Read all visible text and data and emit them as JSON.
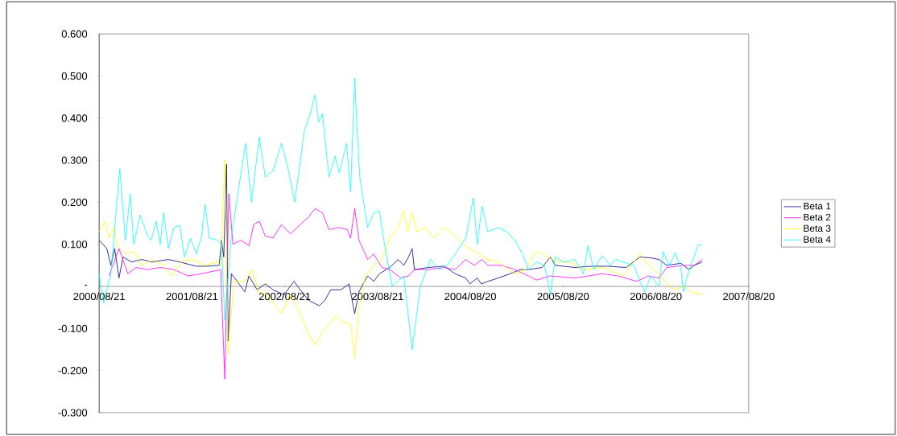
{
  "chart_data": {
    "type": "line",
    "legend": "right",
    "xlim": [
      "2000-08-21",
      "2007-08-20"
    ],
    "ylim": [
      -0.3,
      0.6
    ],
    "xticks": [
      {
        "value": "2000-08-21",
        "label": "2000/08/21"
      },
      {
        "value": "2001-08-21",
        "label": "2001/08/21"
      },
      {
        "value": "2002-08-21",
        "label": "2002/08/21"
      },
      {
        "value": "2003-08-21",
        "label": "2003/08/21"
      },
      {
        "value": "2004-08-20",
        "label": "2004/08/20"
      },
      {
        "value": "2005-08-20",
        "label": "2005/08/20"
      },
      {
        "value": "2006-08-20",
        "label": "2006/08/20"
      },
      {
        "value": "2007-08-20",
        "label": "2007/08/20"
      }
    ],
    "yticks": [
      {
        "value": -0.3,
        "label": "-0.300"
      },
      {
        "value": -0.2,
        "label": "-0.200"
      },
      {
        "value": -0.1,
        "label": "-0.100"
      },
      {
        "value": 0,
        "label": "-"
      },
      {
        "value": 0.1,
        "label": "0.100"
      },
      {
        "value": 0.2,
        "label": "0.200"
      },
      {
        "value": 0.3,
        "label": "0.300"
      },
      {
        "value": 0.4,
        "label": "0.400"
      },
      {
        "value": 0.5,
        "label": "0.500"
      },
      {
        "value": 0.6,
        "label": "0.600"
      }
    ],
    "series": [
      {
        "name": "Beta 1",
        "color": "#000080",
        "x": [
          "2000-08-21",
          "2000-09-20",
          "2000-10-06",
          "2000-10-21",
          "2000-11-07",
          "2000-11-23",
          "2000-12-25",
          "2001-02-05",
          "2001-03-17",
          "2001-05-20",
          "2001-07-04",
          "2001-09-07",
          "2001-10-18",
          "2001-12-06",
          "2001-12-15",
          "2001-12-24",
          "2002-01-04",
          "2002-01-10",
          "2002-01-23",
          "2002-02-15",
          "2002-03-17",
          "2002-04-02",
          "2002-05-04",
          "2002-06-05",
          "2002-07-06",
          "2002-08-18",
          "2002-09-26",
          "2002-10-21",
          "2002-11-23",
          "2002-12-15",
          "2003-01-04",
          "2003-01-26",
          "2003-02-18",
          "2003-03-30",
          "2003-05-01",
          "2003-05-23",
          "2003-06-09",
          "2003-06-25",
          "2003-07-13",
          "2003-08-06",
          "2003-08-28",
          "2003-10-08",
          "2003-11-10",
          "2003-12-02",
          "2003-12-21",
          "2004-01-04",
          "2004-01-13",
          "2004-03-07",
          "2004-05-10",
          "2004-06-21",
          "2004-08-02",
          "2004-08-18",
          "2004-09-16",
          "2004-10-02",
          "2004-10-28",
          "2004-12-08",
          "2005-01-23",
          "2005-03-04",
          "2005-04-05",
          "2005-05-29",
          "2005-07-01",
          "2005-07-20",
          "2005-10-05",
          "2005-12-09",
          "2006-02-11",
          "2006-04-25",
          "2006-06-18",
          "2006-07-30",
          "2006-09-01",
          "2006-10-02",
          "2006-11-26",
          "2006-12-28",
          "2007-01-17",
          "2007-02-18"
        ],
        "values": [
          0.11,
          0.09,
          0.05,
          0.09,
          0.02,
          0.07,
          0.058,
          0.064,
          0.058,
          0.064,
          0.058,
          0.048,
          0.048,
          0.05,
          0.11,
          0.07,
          0.29,
          -0.13,
          0.03,
          0.012,
          -0.013,
          0.025,
          -0.008,
          0.006,
          -0.008,
          -0.02,
          0.012,
          -0.008,
          -0.033,
          -0.04,
          -0.046,
          -0.033,
          -0.008,
          -0.008,
          0.006,
          -0.065,
          -0.013,
          0.006,
          0.025,
          0.012,
          0.03,
          0.045,
          0.064,
          0.05,
          0.07,
          0.09,
          0.04,
          0.045,
          0.048,
          0.03,
          0.02,
          0.006,
          0.02,
          0.006,
          0.012,
          0.02,
          0.03,
          0.04,
          0.04,
          0.045,
          0.07,
          0.05,
          0.045,
          0.048,
          0.048,
          0.045,
          0.07,
          0.068,
          0.064,
          0.05,
          0.055,
          0.04,
          0.05,
          0.058
        ]
      },
      {
        "name": "Beta 2",
        "color": "#ff00ff",
        "x": [
          "2000-09-29",
          "2000-11-07",
          "2000-12-12",
          "2001-01-13",
          "2001-02-27",
          "2001-04-18",
          "2001-06-11",
          "2001-08-05",
          "2001-09-26",
          "2001-12-12",
          "2001-12-28",
          "2002-01-13",
          "2002-01-29",
          "2002-03-01",
          "2002-04-02",
          "2002-04-21",
          "2002-05-13",
          "2002-06-05",
          "2002-07-06",
          "2002-08-08",
          "2002-09-13",
          "2002-10-21",
          "2002-11-23",
          "2002-12-18",
          "2003-01-16",
          "2003-02-11",
          "2003-03-20",
          "2003-04-24",
          "2003-05-07",
          "2003-05-23",
          "2003-06-09",
          "2003-07-13",
          "2003-08-06",
          "2003-09-07",
          "2003-10-08",
          "2003-11-20",
          "2003-12-21",
          "2004-01-13",
          "2004-03-07",
          "2004-05-10",
          "2004-06-21",
          "2004-08-02",
          "2004-09-04",
          "2004-10-05",
          "2004-10-28",
          "2004-12-21",
          "2005-02-11",
          "2005-04-05",
          "2005-05-07",
          "2005-07-01",
          "2005-10-05",
          "2005-11-26",
          "2006-01-20",
          "2006-03-23",
          "2006-06-06",
          "2006-07-20",
          "2006-09-01",
          "2006-10-02",
          "2006-12-06",
          "2007-01-17",
          "2007-02-18"
        ],
        "values": [
          0.025,
          0.09,
          0.03,
          0.045,
          0.04,
          0.045,
          0.04,
          0.025,
          0.03,
          0.04,
          -0.22,
          0.22,
          0.1,
          0.11,
          0.097,
          0.147,
          0.155,
          0.12,
          0.115,
          0.147,
          0.125,
          0.147,
          0.165,
          0.185,
          0.175,
          0.135,
          0.14,
          0.135,
          0.115,
          0.185,
          0.11,
          0.064,
          0.077,
          0.045,
          0.04,
          0.02,
          0.025,
          0.04,
          0.04,
          0.045,
          0.04,
          0.064,
          0.05,
          0.064,
          0.05,
          0.05,
          0.04,
          0.025,
          0.015,
          0.025,
          0.02,
          0.025,
          0.03,
          0.025,
          0.012,
          0.025,
          0.02,
          0.045,
          0.05,
          0.05,
          0.064
        ]
      },
      {
        "name": "Beta 3",
        "color": "#ffff00",
        "x": [
          "2000-08-21",
          "2000-09-13",
          "2000-09-29",
          "2000-10-15",
          "2000-11-01",
          "2000-12-02",
          "2001-01-04",
          "2001-02-05",
          "2001-03-17",
          "2001-05-01",
          "2001-06-02",
          "2001-07-13",
          "2001-08-25",
          "2001-10-09",
          "2001-11-29",
          "2001-12-12",
          "2001-12-28",
          "2002-01-10",
          "2002-02-02",
          "2002-03-17",
          "2002-04-12",
          "2002-05-13",
          "2002-06-15",
          "2002-08-08",
          "2002-09-10",
          "2002-10-21",
          "2002-11-23",
          "2002-12-18",
          "2003-01-16",
          "2003-02-11",
          "2003-03-07",
          "2003-04-08",
          "2003-05-07",
          "2003-05-23",
          "2003-06-09",
          "2003-07-04",
          "2003-08-06",
          "2003-09-07",
          "2003-10-08",
          "2003-11-10",
          "2003-12-02",
          "2003-12-18",
          "2004-01-04",
          "2004-01-23",
          "2004-02-25",
          "2004-03-27",
          "2004-05-10",
          "2004-06-21",
          "2004-07-23",
          "2004-09-04",
          "2004-10-28",
          "2004-12-08",
          "2005-02-11",
          "2005-03-26",
          "2005-04-28",
          "2005-05-17",
          "2005-06-18",
          "2005-08-02",
          "2005-09-13",
          "2005-11-07",
          "2006-01-20",
          "2006-04-15",
          "2006-06-18",
          "2006-07-30",
          "2006-09-10",
          "2006-10-09",
          "2006-11-04",
          "2006-12-06",
          "2007-01-07",
          "2007-02-18"
        ],
        "values": [
          0.13,
          0.155,
          0.115,
          0.14,
          0.097,
          0.077,
          0.083,
          0.05,
          0.064,
          0.05,
          0.025,
          0.06,
          0.064,
          0.05,
          0.058,
          0.05,
          0.3,
          -0.16,
          0.012,
          0.012,
          0.04,
          -0.013,
          -0.02,
          -0.065,
          -0.02,
          -0.065,
          -0.115,
          -0.14,
          -0.11,
          -0.09,
          -0.07,
          -0.085,
          -0.09,
          -0.17,
          -0.05,
          0.025,
          0.05,
          0.064,
          0.115,
          0.14,
          0.18,
          0.13,
          0.175,
          0.13,
          0.14,
          0.115,
          0.14,
          0.12,
          0.1,
          0.083,
          0.064,
          0.058,
          0.03,
          0.04,
          0.077,
          0.083,
          0.07,
          0.058,
          0.058,
          0.04,
          0.045,
          0.025,
          0.077,
          0.045,
          0.025,
          0.0,
          -0.008,
          0.0,
          -0.013,
          -0.02
        ]
      },
      {
        "name": "Beta 4",
        "color": "#00ffff",
        "x": [
          "2000-08-21",
          "2000-09-07",
          "2000-10-06",
          "2000-11-10",
          "2000-12-02",
          "2000-12-21",
          "2001-01-04",
          "2001-01-29",
          "2001-02-27",
          "2001-03-13",
          "2001-04-02",
          "2001-04-18",
          "2001-05-01",
          "2001-05-20",
          "2001-06-11",
          "2001-07-04",
          "2001-07-23",
          "2001-08-15",
          "2001-09-07",
          "2001-09-26",
          "2001-10-12",
          "2001-10-28",
          "2001-11-29",
          "2001-12-15",
          "2001-12-28",
          "2002-01-23",
          "2002-02-25",
          "2002-03-20",
          "2002-04-12",
          "2002-05-13",
          "2002-06-05",
          "2002-07-06",
          "2002-08-08",
          "2002-09-03",
          "2002-09-29",
          "2002-11-06",
          "2002-11-29",
          "2002-12-18",
          "2003-01-01",
          "2003-01-16",
          "2003-02-11",
          "2003-03-07",
          "2003-03-23",
          "2003-04-21",
          "2003-05-07",
          "2003-05-23",
          "2003-06-02",
          "2003-06-12",
          "2003-07-13",
          "2003-08-06",
          "2003-08-28",
          "2003-09-17",
          "2003-10-18",
          "2003-12-02",
          "2004-01-04",
          "2004-02-05",
          "2004-03-17",
          "2004-04-18",
          "2004-05-20",
          "2004-06-21",
          "2004-08-02",
          "2004-09-01",
          "2004-09-16",
          "2004-10-05",
          "2004-10-28",
          "2004-12-08",
          "2005-01-10",
          "2005-02-11",
          "2005-03-13",
          "2005-04-05",
          "2005-05-07",
          "2005-06-08",
          "2005-07-01",
          "2005-07-20",
          "2005-08-21",
          "2005-10-05",
          "2005-11-07",
          "2005-11-26",
          "2005-12-18",
          "2006-01-20",
          "2006-02-21",
          "2006-03-13",
          "2006-04-25",
          "2006-05-26",
          "2006-06-18",
          "2006-07-07",
          "2006-07-30",
          "2006-09-01",
          "2006-09-16",
          "2006-10-12",
          "2006-11-04",
          "2006-11-26",
          "2006-12-06",
          "2006-12-28",
          "2007-01-17",
          "2007-02-02",
          "2007-02-18"
        ],
        "values": [
          0.03,
          -0.04,
          0.03,
          0.28,
          0.11,
          0.22,
          0.1,
          0.17,
          0.12,
          0.11,
          0.155,
          0.1,
          0.175,
          0.09,
          0.14,
          0.145,
          0.07,
          0.115,
          0.077,
          0.115,
          0.195,
          0.115,
          0.11,
          0.1,
          -0.08,
          0.12,
          0.25,
          0.34,
          0.2,
          0.355,
          0.26,
          0.275,
          0.34,
          0.28,
          0.2,
          0.37,
          0.41,
          0.455,
          0.39,
          0.41,
          0.26,
          0.31,
          0.27,
          0.34,
          0.225,
          0.495,
          0.365,
          0.26,
          0.14,
          0.175,
          0.18,
          0.1,
          0.0,
          0.025,
          -0.15,
          0.0,
          0.065,
          0.04,
          0.05,
          0.077,
          0.115,
          0.21,
          0.1,
          0.19,
          0.13,
          0.14,
          0.13,
          0.11,
          0.077,
          0.04,
          0.058,
          0.05,
          -0.02,
          0.07,
          0.058,
          0.064,
          0.03,
          0.097,
          0.04,
          0.073,
          0.05,
          0.064,
          0.055,
          0.05,
          0.012,
          -0.013,
          0.025,
          0.0,
          0.083,
          0.05,
          0.08,
          0.045,
          -0.013,
          0.04,
          0.07,
          0.1,
          0.097
        ]
      }
    ]
  }
}
